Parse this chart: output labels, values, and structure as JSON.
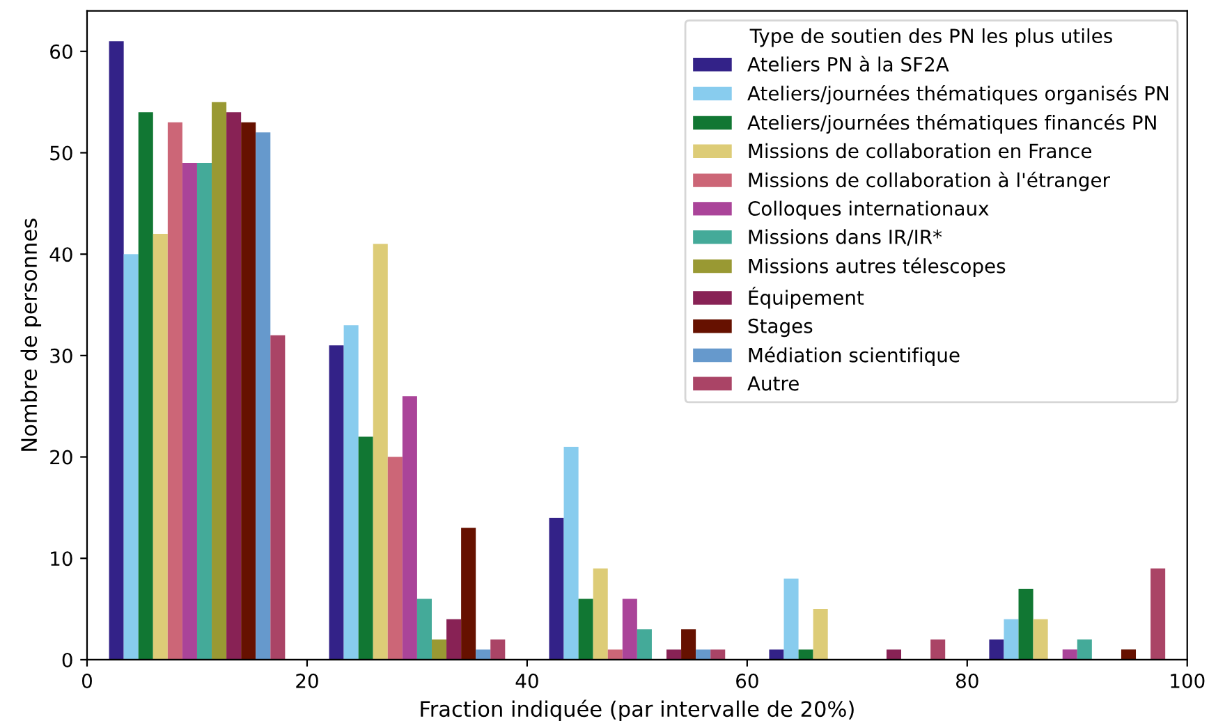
{
  "chart_data": {
    "type": "histogram",
    "xlabel": "Fraction indiquée (par intervalle de 20%)",
    "ylabel": "Nombre de personnes",
    "legend_title": "Type de soutien des PN les plus utiles",
    "legend": "top right",
    "bins": [
      0,
      20,
      40,
      60,
      80,
      100
    ],
    "xlim": [
      0,
      100
    ],
    "xticks": [
      0,
      20,
      40,
      60,
      80,
      100
    ],
    "ylim": [
      0,
      64
    ],
    "yticks": [
      0,
      10,
      20,
      30,
      40,
      50,
      60
    ],
    "series": [
      {
        "name": "Ateliers PN à la SF2A",
        "color": "#332288",
        "values": [
          61,
          31,
          14,
          1,
          2
        ]
      },
      {
        "name": "Ateliers/journées thématiques organisés PN",
        "color": "#88ccee",
        "values": [
          40,
          33,
          21,
          8,
          4
        ]
      },
      {
        "name": "Ateliers/journées thématiques financés PN",
        "color": "#117733",
        "values": [
          54,
          22,
          6,
          1,
          7
        ]
      },
      {
        "name": "Missions de collaboration en France",
        "color": "#ddcc77",
        "values": [
          42,
          41,
          9,
          5,
          4
        ]
      },
      {
        "name": "Missions de collaboration à l'étranger",
        "color": "#cc6677",
        "values": [
          53,
          20,
          1,
          0,
          0
        ]
      },
      {
        "name": "Colloques internationaux",
        "color": "#aa4499",
        "values": [
          49,
          26,
          6,
          0,
          1
        ]
      },
      {
        "name": "Missions dans IR/IR*",
        "color": "#44aa99",
        "values": [
          49,
          6,
          3,
          0,
          2
        ]
      },
      {
        "name": "Missions autres télescopes",
        "color": "#999933",
        "values": [
          55,
          2,
          0,
          0,
          0
        ]
      },
      {
        "name": "Équipement",
        "color": "#882255",
        "values": [
          54,
          4,
          1,
          1,
          0
        ]
      },
      {
        "name": "Stages",
        "color": "#661100",
        "values": [
          53,
          13,
          3,
          0,
          1
        ]
      },
      {
        "name": "Médiation scientifique",
        "color": "#6699cc",
        "values": [
          52,
          1,
          1,
          0,
          0
        ]
      },
      {
        "name": "Autre",
        "color": "#aa4466",
        "values": [
          32,
          2,
          1,
          2,
          9
        ]
      }
    ]
  }
}
